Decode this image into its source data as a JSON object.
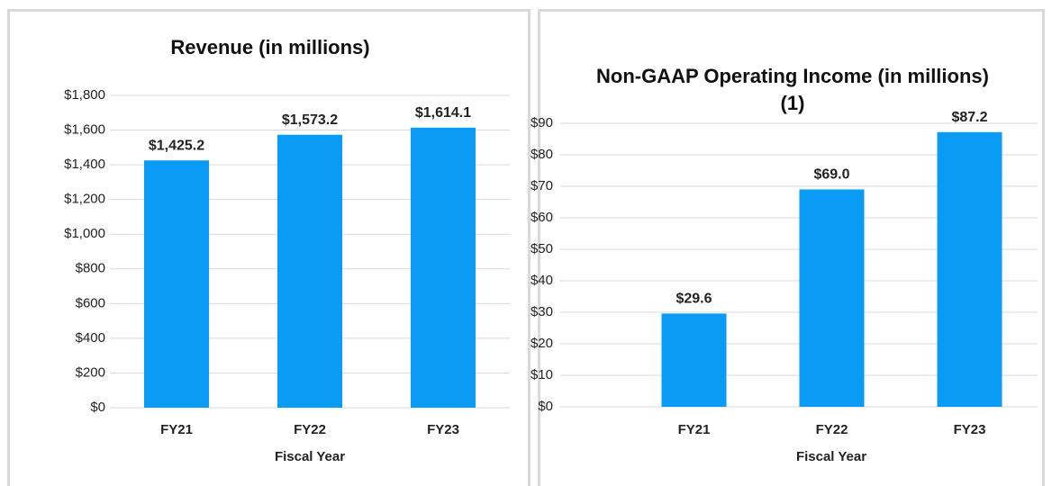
{
  "chart_data": [
    {
      "type": "bar",
      "title": "Revenue (in millions)",
      "categories": [
        "FY21",
        "FY22",
        "FY23"
      ],
      "values": [
        1425.2,
        1573.2,
        1614.1
      ],
      "value_labels": [
        "$1,425.2",
        "$1,573.2",
        "$1,614.1"
      ],
      "color": "#0a9bf5",
      "x_label": "Fiscal Year",
      "ylim": [
        0,
        1800
      ],
      "yticks": [
        {
          "value": 0,
          "label": "$0"
        },
        {
          "value": 200,
          "label": "$200"
        },
        {
          "value": 400,
          "label": "$400"
        },
        {
          "value": 600,
          "label": "$600"
        },
        {
          "value": 800,
          "label": "$800"
        },
        {
          "value": 1000,
          "label": "$1,000"
        },
        {
          "value": 1200,
          "label": "$1,200"
        },
        {
          "value": 1400,
          "label": "$1,400"
        },
        {
          "value": 1600,
          "label": "$1,600"
        },
        {
          "value": 1800,
          "label": "$1,800"
        }
      ],
      "grid": true
    },
    {
      "type": "bar",
      "title": "Non-GAAP Operating Income (in millions)(1)",
      "categories": [
        "FY21",
        "FY22",
        "FY23"
      ],
      "values": [
        29.6,
        69.0,
        87.2
      ],
      "value_labels": [
        "$29.6",
        "$69.0",
        "$87.2"
      ],
      "color": "#0a9bf5",
      "x_label": "Fiscal Year",
      "ylim": [
        0,
        90
      ],
      "yticks": [
        {
          "value": 0,
          "label": "$0"
        },
        {
          "value": 10,
          "label": "$10"
        },
        {
          "value": 20,
          "label": "$20"
        },
        {
          "value": 30,
          "label": "$30"
        },
        {
          "value": 40,
          "label": "$40"
        },
        {
          "value": 50,
          "label": "$50"
        },
        {
          "value": 60,
          "label": "$60"
        },
        {
          "value": 70,
          "label": "$70"
        },
        {
          "value": 80,
          "label": "$80"
        },
        {
          "value": 90,
          "label": "$90"
        }
      ],
      "grid": true
    }
  ]
}
